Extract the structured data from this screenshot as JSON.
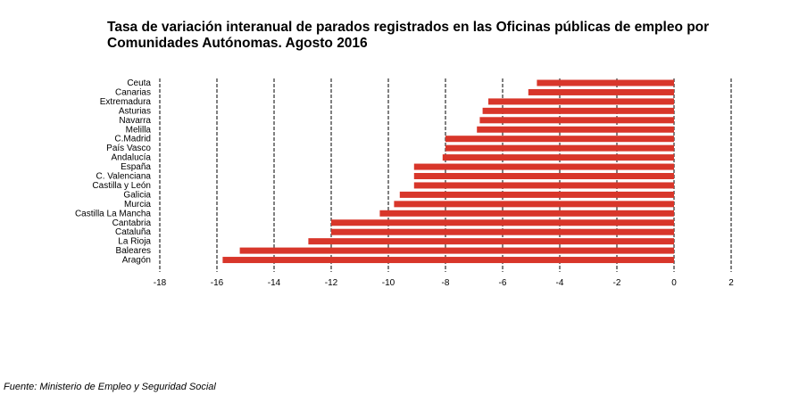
{
  "title_line1": "Tasa de variación interanual de parados registrados en las Oficinas públicas de empleo por",
  "title_line2": "Comunidades Autónomas.  Agosto 2016",
  "source": "Fuente: Ministerio de Empleo y Seguridad Social",
  "chart_data": {
    "type": "bar",
    "orientation": "horizontal",
    "categories": [
      "Ceuta",
      "Canarias",
      "Extremadura",
      "Asturias",
      "Navarra",
      "Melilla",
      "C.Madrid",
      "País Vasco",
      "Andalucía",
      "España",
      "C. Valenciana",
      "Castilla y León",
      "Galicia",
      "Murcia",
      "Castilla La Mancha",
      "Cantabria",
      "Cataluña",
      "La Rioja",
      "Baleares",
      "Aragón"
    ],
    "values": [
      -4.8,
      -5.1,
      -6.5,
      -6.7,
      -6.8,
      -6.9,
      -8.0,
      -8.0,
      -8.1,
      -9.1,
      -9.1,
      -9.1,
      -9.6,
      -9.8,
      -10.3,
      -12.0,
      -12.0,
      -12.8,
      -15.2,
      -15.8
    ],
    "xlim": [
      -18,
      2
    ],
    "xticks": [
      -18,
      -16,
      -14,
      -12,
      -10,
      -8,
      -6,
      -4,
      -2,
      0,
      2
    ],
    "grid": "vertical dashed at ticks",
    "bar_color": "#d8362a",
    "title": "Tasa de variación interanual de parados registrados en las Oficinas públicas de empleo por Comunidades Autónomas.  Agosto 2016"
  }
}
